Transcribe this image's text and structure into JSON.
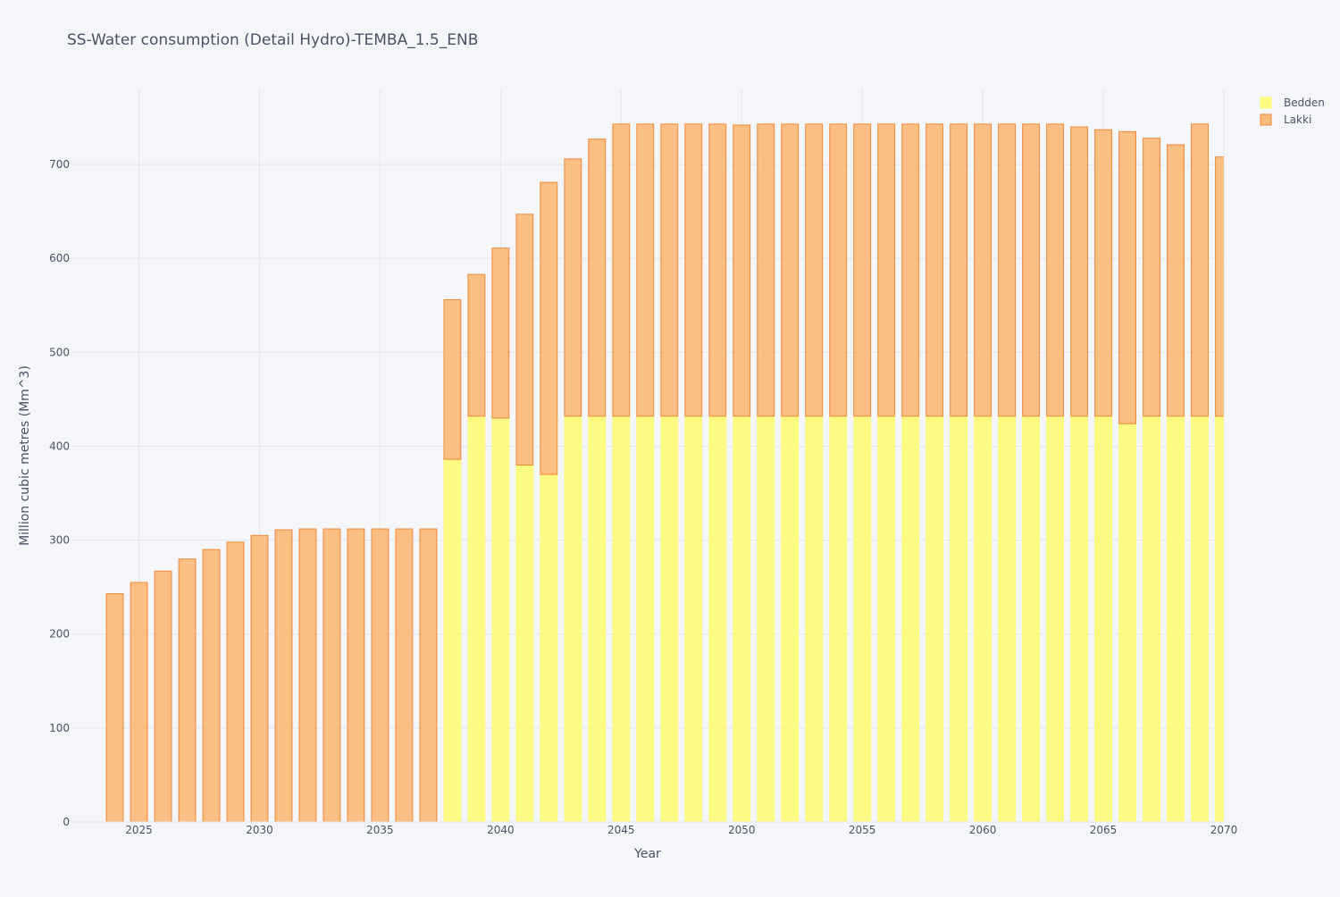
{
  "chart_data": {
    "type": "bar",
    "barmode": "stack",
    "title": "SS-Water consumption (Detail Hydro)-TEMBA_1.5_ENB",
    "xlabel": "Year",
    "ylabel": "Million cubic metres (Mm^3)",
    "xlim": [
      2022.2,
      2070
    ],
    "ylim": [
      0,
      780
    ],
    "x_ticks": [
      2025,
      2030,
      2035,
      2040,
      2045,
      2050,
      2055,
      2060,
      2065,
      2070
    ],
    "y_ticks": [
      0,
      100,
      200,
      300,
      400,
      500,
      600,
      700
    ],
    "grid": true,
    "legend_position": "top-right",
    "categories": [
      2024,
      2025,
      2026,
      2027,
      2028,
      2029,
      2030,
      2031,
      2032,
      2033,
      2034,
      2035,
      2036,
      2037,
      2038,
      2039,
      2040,
      2041,
      2042,
      2043,
      2044,
      2045,
      2046,
      2047,
      2048,
      2049,
      2050,
      2051,
      2052,
      2053,
      2054,
      2055,
      2056,
      2057,
      2058,
      2059,
      2060,
      2061,
      2062,
      2063,
      2064,
      2065,
      2066,
      2067,
      2068,
      2069,
      2070
    ],
    "series": [
      {
        "name": "Bedden",
        "color": "#fbfa7c",
        "edge_color": "#fbfa7c",
        "values": [
          0,
          0,
          0,
          0,
          0,
          0,
          0,
          0,
          0,
          0,
          0,
          0,
          0,
          0,
          386,
          432,
          430,
          380,
          370,
          432,
          432,
          432,
          432,
          432,
          432,
          432,
          432,
          432,
          432,
          432,
          432,
          432,
          432,
          432,
          432,
          432,
          432,
          432,
          432,
          432,
          432,
          432,
          424,
          432,
          432,
          432,
          432
        ]
      },
      {
        "name": "Lakki",
        "color": "#fbbb7c",
        "edge_color": "#ee8a3a",
        "values": [
          243,
          255,
          267,
          280,
          290,
          298,
          305,
          311,
          312,
          312,
          312,
          312,
          312,
          312,
          170,
          151,
          181,
          267,
          311,
          274,
          295,
          311,
          311,
          311,
          311,
          311,
          310,
          311,
          311,
          311,
          311,
          311,
          311,
          311,
          311,
          311,
          311,
          311,
          311,
          311,
          308,
          305,
          311,
          296,
          289,
          311,
          276
        ]
      }
    ]
  }
}
